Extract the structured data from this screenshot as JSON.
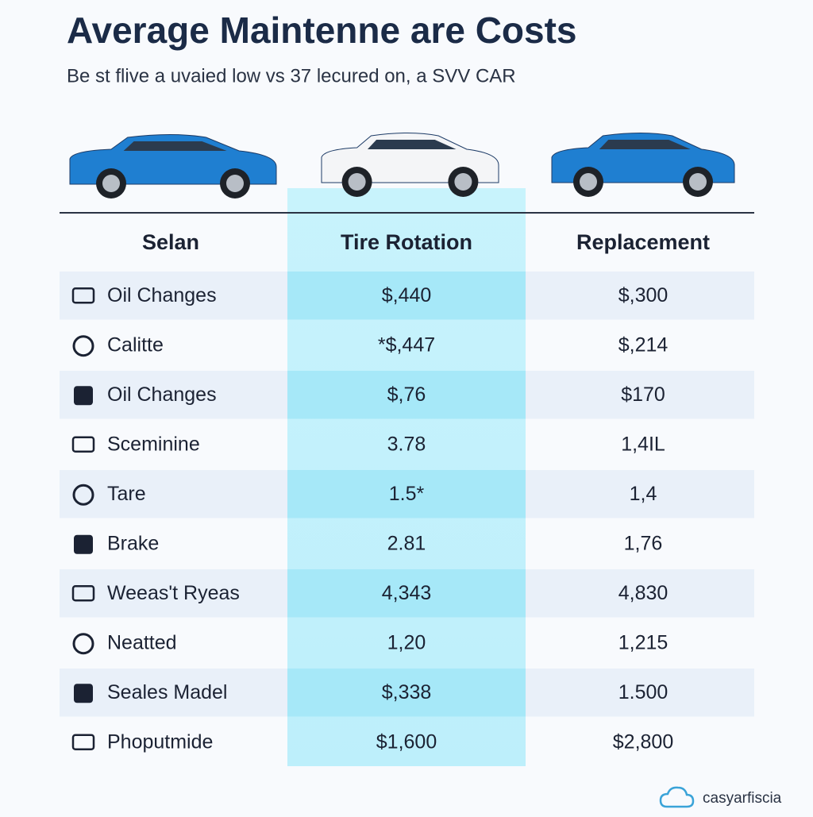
{
  "header": {
    "title": "Average Maintenne are Costs",
    "subtitle": "Be st flive a uvaied low vs 37 lecured on, a SVV CAR"
  },
  "table": {
    "columns": [
      "Selan",
      "Tire Rotation",
      "Replacement"
    ],
    "rows": [
      [
        "Oil Changes",
        "$,440",
        "$,300"
      ],
      [
        "Calitte",
        "*$,447",
        "$,214"
      ],
      [
        "Oil Changes",
        "$,76",
        "$170"
      ],
      [
        "Sceminine",
        "3.78",
        "1,4IL"
      ],
      [
        "Tare",
        "1.5*",
        "1,4"
      ],
      [
        "Brake",
        "2.81",
        "1,76"
      ],
      [
        "Weeas't Ryeas",
        "4,343",
        "4,830"
      ],
      [
        "Neatted",
        "1,20",
        "1,215"
      ],
      [
        "Seales Madel",
        "$,338",
        "1.500"
      ],
      [
        "Phoputmide",
        "$1,600",
        "$2,800"
      ]
    ]
  },
  "footer": {
    "brand": "casyarfiscia"
  }
}
